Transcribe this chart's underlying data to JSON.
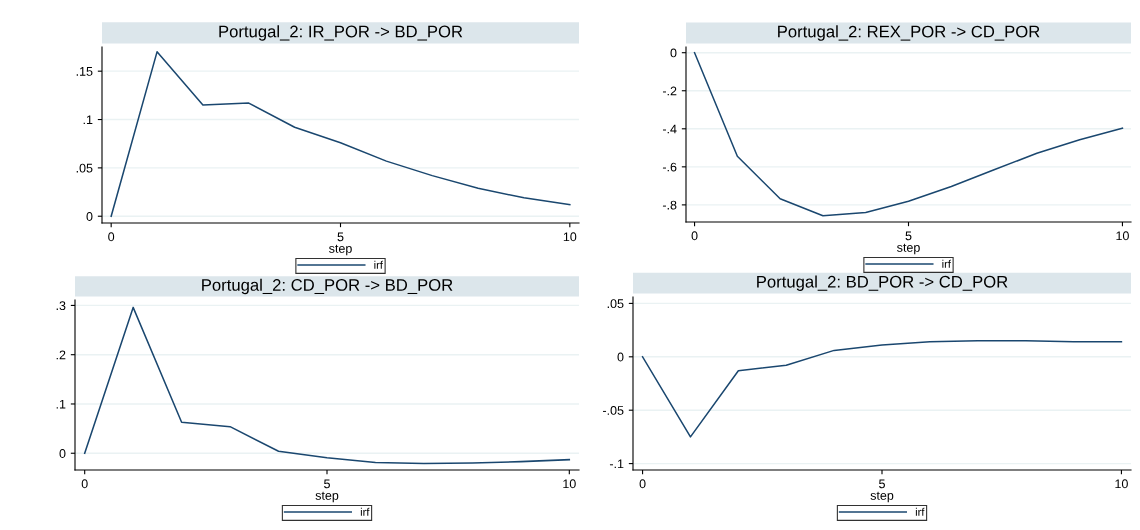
{
  "chart_data": [
    {
      "type": "line",
      "title": "Portugal_2: IR_POR -> BD_POR",
      "xlabel": "step",
      "x": [
        0,
        1,
        2,
        3,
        4,
        5,
        6,
        7,
        8,
        9,
        10
      ],
      "xlim": [
        -0.2,
        10.2
      ],
      "xticks": [
        0,
        5,
        10
      ],
      "ylim": [
        -0.007,
        0.175
      ],
      "yticks": [
        0,
        {
          "value": 0.05,
          "label": ".05"
        },
        {
          "value": 0.1,
          "label": ".1"
        },
        {
          "value": 0.15,
          "label": ".15"
        }
      ],
      "grid": "y",
      "legend": "bottom",
      "line_style": "solid",
      "series": [
        {
          "name": "irf",
          "color": "#1a476f",
          "values": [
            0,
            0.17,
            0.115,
            0.117,
            0.092,
            0.076,
            0.057,
            0.042,
            0.029,
            0.019,
            0.012
          ]
        }
      ]
    },
    {
      "type": "line",
      "title": "Portugal_2: REX_POR -> CD_POR",
      "xlabel": "step",
      "x": [
        0,
        1,
        2,
        3,
        4,
        5,
        6,
        7,
        8,
        9,
        10
      ],
      "xlim": [
        -0.2,
        10.2
      ],
      "xticks": [
        0,
        5,
        10
      ],
      "ylim": [
        -0.89,
        0.03
      ],
      "yticks": [
        0,
        {
          "value": -0.2,
          "label": "-.2"
        },
        {
          "value": -0.4,
          "label": "-.4"
        },
        {
          "value": -0.6,
          "label": "-.6"
        },
        {
          "value": -0.8,
          "label": "-.8"
        }
      ],
      "grid": "y",
      "legend": "bottom",
      "line_style": "solid",
      "series": [
        {
          "name": "irf",
          "color": "#1a476f",
          "values": [
            0,
            -0.544,
            -0.768,
            -0.857,
            -0.84,
            -0.781,
            -0.703,
            -0.615,
            -0.529,
            -0.458,
            -0.397
          ]
        }
      ]
    },
    {
      "type": "line",
      "title": "Portugal_2: CD_POR -> BD_POR",
      "xlabel": "step",
      "x": [
        0,
        1,
        2,
        3,
        4,
        5,
        6,
        7,
        8,
        9,
        10
      ],
      "xlim": [
        -0.2,
        10.2
      ],
      "xticks": [
        0,
        5,
        10
      ],
      "ylim": [
        -0.034,
        0.311
      ],
      "yticks": [
        0,
        {
          "value": 0.1,
          "label": ".1"
        },
        {
          "value": 0.2,
          "label": ".2"
        },
        {
          "value": 0.3,
          "label": ".3"
        }
      ],
      "grid": "y",
      "legend": "bottom",
      "line_style": "solid",
      "series": [
        {
          "name": "irf",
          "color": "#1a476f",
          "values": [
            0,
            0.296,
            0.063,
            0.054,
            0.004,
            -0.009,
            -0.019,
            -0.021,
            -0.02,
            -0.017,
            -0.013
          ]
        }
      ]
    },
    {
      "type": "line",
      "title": "Portugal_2: BD_POR -> CD_POR",
      "xlabel": "step",
      "x": [
        0,
        1,
        2,
        3,
        4,
        5,
        6,
        7,
        8,
        9,
        10
      ],
      "xlim": [
        -0.2,
        10.2
      ],
      "xticks": [
        0,
        5,
        10
      ],
      "ylim": [
        -0.106,
        0.056
      ],
      "yticks": [
        {
          "value": -0.1,
          "label": "-.1"
        },
        {
          "value": -0.05,
          "label": "-.05"
        },
        0,
        {
          "value": 0.05,
          "label": ".05"
        }
      ],
      "grid": "y",
      "legend": "bottom",
      "line_style": "solid",
      "series": [
        {
          "name": "irf",
          "color": "#1a476f",
          "values": [
            0,
            -0.075,
            -0.013,
            -0.008,
            0.006,
            0.011,
            0.014,
            0.015,
            0.015,
            0.014,
            0.014
          ]
        }
      ]
    }
  ]
}
